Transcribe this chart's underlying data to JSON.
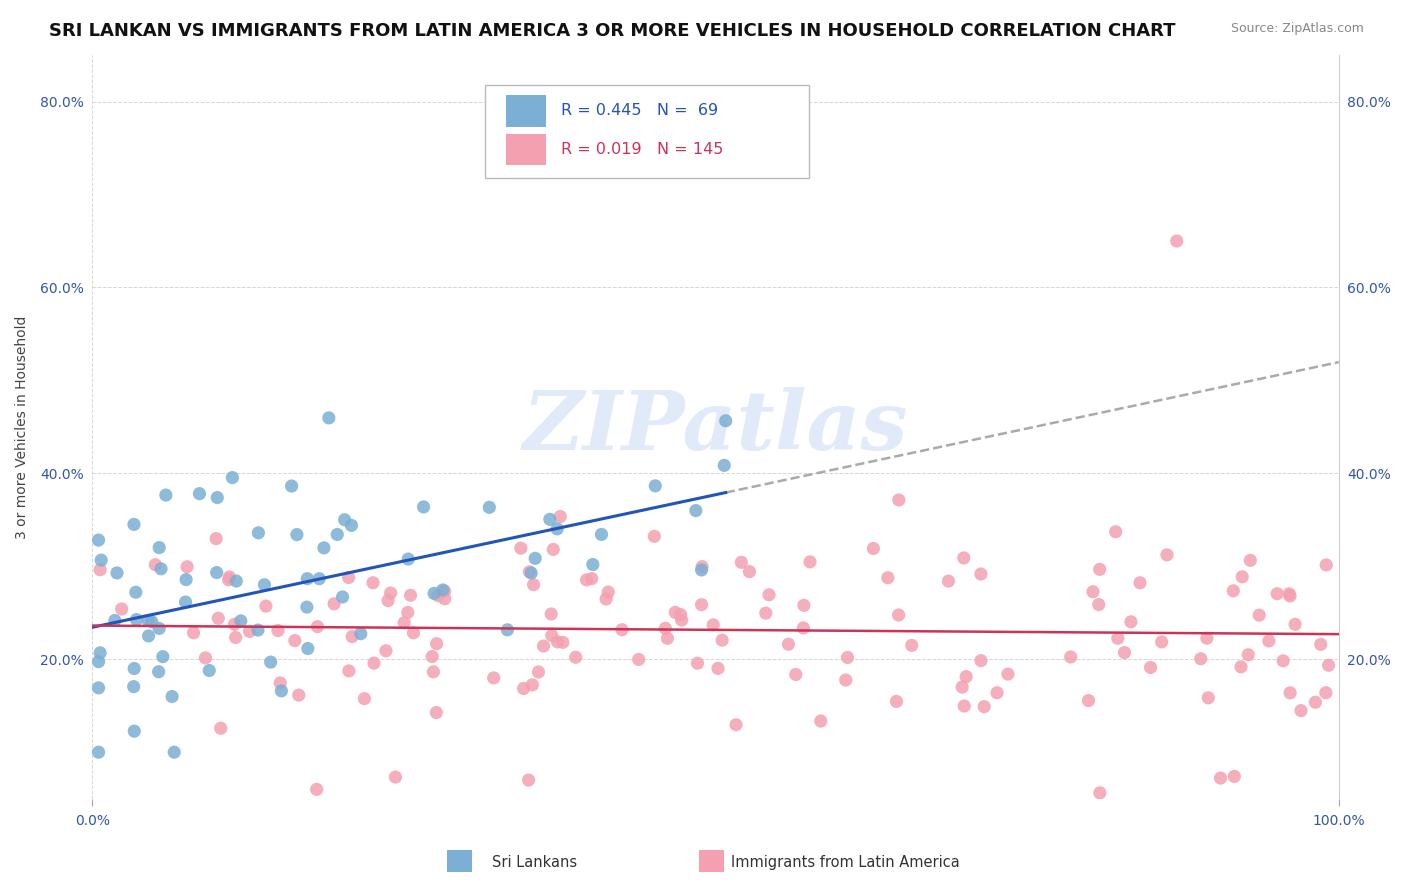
{
  "title": "SRI LANKAN VS IMMIGRANTS FROM LATIN AMERICA 3 OR MORE VEHICLES IN HOUSEHOLD CORRELATION CHART",
  "source": "Source: ZipAtlas.com",
  "ylabel": "3 or more Vehicles in Household",
  "xlim": [
    0,
    100
  ],
  "ylim": [
    5,
    85
  ],
  "x_tick_vals": [
    0,
    100
  ],
  "x_tick_labels": [
    "0.0%",
    "100.0%"
  ],
  "y_tick_vals": [
    20,
    40,
    60,
    80
  ],
  "y_tick_labels": [
    "20.0%",
    "40.0%",
    "60.0%",
    "80.0%"
  ],
  "sri_lanka_color": "#7bafd4",
  "latin_color": "#f4a0b0",
  "sri_lanka_line_color": "#2255bb",
  "latin_line_color": "#cc3355",
  "dash_color": "#aaaaaa",
  "sri_lanka_R": 0.445,
  "sri_lanka_N": 69,
  "latin_R": 0.019,
  "latin_N": 145,
  "watermark_text": "ZIPatlas",
  "watermark_color": "#ccddf5",
  "legend_label_1": "Sri Lankans",
  "legend_label_2": "Immigrants from Latin America",
  "title_fontsize": 13,
  "axis_tick_fontsize": 10,
  "ylabel_fontsize": 10,
  "source_fontsize": 9
}
